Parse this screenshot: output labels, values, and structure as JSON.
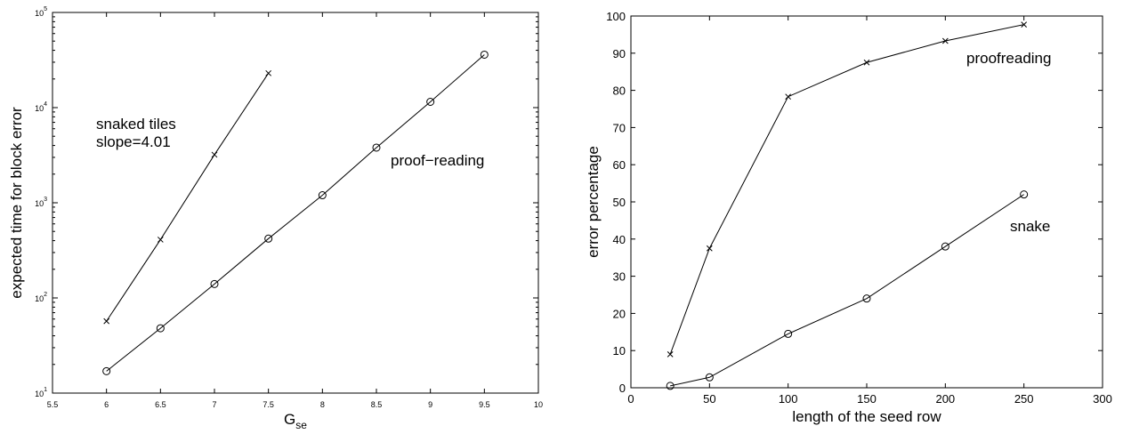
{
  "chart_data": [
    {
      "type": "line",
      "xlabel_main": "G",
      "xlabel_sub": "se",
      "ylabel": "expected time for block error",
      "xlim": [
        5.5,
        10
      ],
      "ylim": [
        10,
        100000
      ],
      "y_scale": "log",
      "x_ticks": [
        "5.5",
        "6",
        "6.5",
        "7",
        "7.5",
        "8",
        "8.5",
        "9",
        "9.5",
        "10"
      ],
      "y_ticks": [
        {
          "base": "10",
          "exp": "1"
        },
        {
          "base": "10",
          "exp": "2"
        },
        {
          "base": "10",
          "exp": "3"
        },
        {
          "base": "10",
          "exp": "4"
        },
        {
          "base": "10",
          "exp": "5"
        }
      ],
      "annotations": {
        "snaked_line1": "snaked tiles",
        "snaked_line2": "slope=4.01",
        "proof": "proof−reading"
      },
      "series": [
        {
          "marker": "x",
          "x": [
            6,
            6.5,
            7,
            7.5
          ],
          "y": [
            57,
            410,
            3200,
            23000
          ]
        },
        {
          "marker": "o",
          "x": [
            6,
            6.5,
            7,
            7.5,
            8,
            8.5,
            9,
            9.5
          ],
          "y": [
            17,
            48,
            140,
            420,
            1200,
            3800,
            11500,
            36000
          ]
        }
      ]
    },
    {
      "type": "line",
      "xlabel": "length of the seed row",
      "ylabel": "error percentage",
      "xlim": [
        0,
        300
      ],
      "ylim": [
        0,
        100
      ],
      "x_ticks": [
        "0",
        "50",
        "100",
        "150",
        "200",
        "250",
        "300"
      ],
      "y_ticks": [
        "0",
        "10",
        "20",
        "30",
        "40",
        "50",
        "60",
        "70",
        "80",
        "90",
        "100"
      ],
      "annotations": {
        "proof": "proofreading",
        "snake": "snake"
      },
      "series": [
        {
          "marker": "x",
          "x": [
            25,
            50,
            100,
            150,
            200,
            250
          ],
          "y": [
            9,
            37.5,
            78.3,
            87.5,
            93.3,
            97.7
          ]
        },
        {
          "marker": "o",
          "x": [
            25,
            50,
            100,
            150,
            200,
            250
          ],
          "y": [
            0.5,
            2.8,
            14.5,
            24,
            38,
            52
          ]
        }
      ]
    }
  ]
}
